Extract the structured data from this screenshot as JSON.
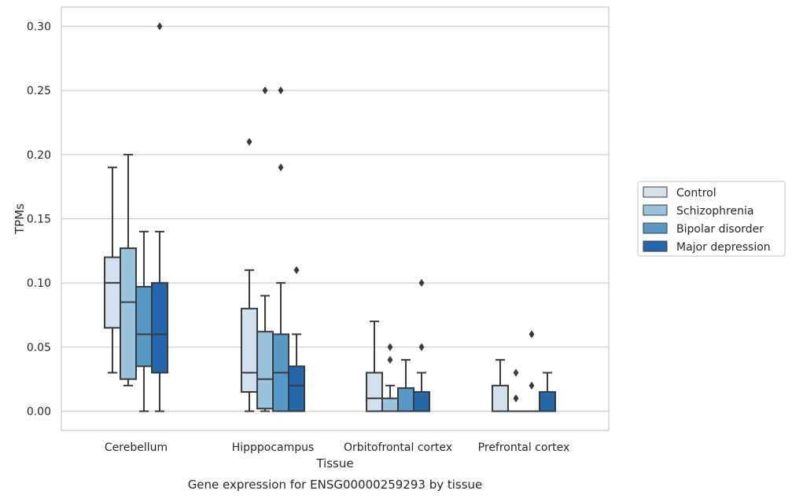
{
  "chart_data": {
    "type": "boxplot",
    "title": "",
    "caption": "Gene expression for ENSG00000259293 by tissue",
    "xlabel": "Tissue",
    "ylabel": "TPMs",
    "ylim": [
      -0.015,
      0.315
    ],
    "yticks": [
      "0.00",
      "0.05",
      "0.10",
      "0.15",
      "0.20",
      "0.25",
      "0.30"
    ],
    "grid": "horizontal",
    "legend_position": "right",
    "categories": [
      "Cerebellum",
      "Hipppocampus",
      "Orbitofrontal cortex",
      "Prefrontal cortex"
    ],
    "series": [
      {
        "name": "Control",
        "color": "#d1e1f0",
        "boxes": [
          {
            "q1": 0.065,
            "median": 0.1,
            "q3": 0.12,
            "whislo": 0.03,
            "whishi": 0.19,
            "fliers": []
          },
          {
            "q1": 0.015,
            "median": 0.03,
            "q3": 0.08,
            "whislo": 0.0,
            "whishi": 0.11,
            "fliers": [
              0.21
            ]
          },
          {
            "q1": 0.0,
            "median": 0.01,
            "q3": 0.03,
            "whislo": 0.0,
            "whishi": 0.07,
            "fliers": []
          },
          {
            "q1": 0.0,
            "median": 0.0,
            "q3": 0.02,
            "whislo": 0.0,
            "whishi": 0.04,
            "fliers": []
          }
        ]
      },
      {
        "name": "Schizophrenia",
        "color": "#9ac3dc",
        "boxes": [
          {
            "q1": 0.025,
            "median": 0.085,
            "q3": 0.127,
            "whislo": 0.02,
            "whishi": 0.2,
            "fliers": []
          },
          {
            "q1": 0.002,
            "median": 0.025,
            "q3": 0.062,
            "whislo": 0.0,
            "whishi": 0.09,
            "fliers": [
              0.25
            ]
          },
          {
            "q1": 0.0,
            "median": 0.0,
            "q3": 0.01,
            "whislo": 0.0,
            "whishi": 0.02,
            "fliers": [
              0.04,
              0.05
            ]
          },
          {
            "q1": 0.0,
            "median": 0.0,
            "q3": 0.0,
            "whislo": 0.0,
            "whishi": 0.0,
            "fliers": [
              0.01,
              0.03
            ]
          }
        ]
      },
      {
        "name": "Bipolar disorder",
        "color": "#5699c7",
        "boxes": [
          {
            "q1": 0.035,
            "median": 0.06,
            "q3": 0.097,
            "whislo": 0.0,
            "whishi": 0.14,
            "fliers": []
          },
          {
            "q1": 0.0,
            "median": 0.03,
            "q3": 0.06,
            "whislo": 0.0,
            "whishi": 0.1,
            "fliers": [
              0.19,
              0.25
            ]
          },
          {
            "q1": 0.0,
            "median": 0.0,
            "q3": 0.018,
            "whislo": 0.0,
            "whishi": 0.04,
            "fliers": []
          },
          {
            "q1": 0.0,
            "median": 0.0,
            "q3": 0.0,
            "whislo": 0.0,
            "whishi": 0.0,
            "fliers": [
              0.02,
              0.06
            ]
          }
        ]
      },
      {
        "name": "Major depression",
        "color": "#2567ac",
        "boxes": [
          {
            "q1": 0.03,
            "median": 0.06,
            "q3": 0.1,
            "whislo": 0.0,
            "whishi": 0.14,
            "fliers": [
              0.3
            ]
          },
          {
            "q1": 0.0,
            "median": 0.02,
            "q3": 0.035,
            "whislo": 0.0,
            "whishi": 0.06,
            "fliers": [
              0.11
            ]
          },
          {
            "q1": 0.0,
            "median": 0.0,
            "q3": 0.015,
            "whislo": 0.0,
            "whishi": 0.03,
            "fliers": [
              0.05,
              0.1
            ]
          },
          {
            "q1": 0.0,
            "median": 0.0,
            "q3": 0.015,
            "whislo": 0.0,
            "whishi": 0.03,
            "fliers": []
          }
        ]
      }
    ]
  }
}
